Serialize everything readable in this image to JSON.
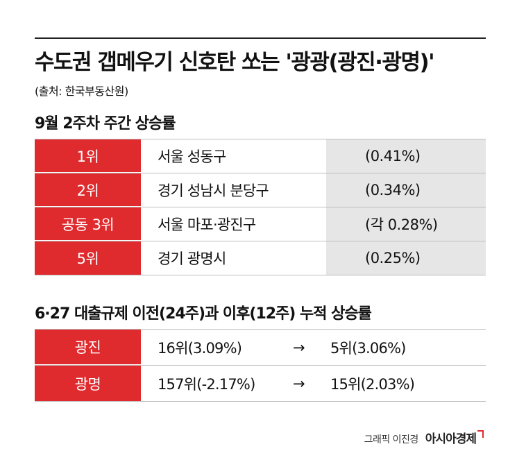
{
  "title": "수도권 갭메우기 신호탄 쏘는 '광광(광진·광명)'",
  "source": "(출처: 한국부동산원)",
  "weekly": {
    "heading": "9월 2주차 주간 상승률",
    "rows": [
      {
        "rank": "1위",
        "region": "서울 성동구",
        "rate": "(0.41%)"
      },
      {
        "rank": "2위",
        "region": "경기 성남시 분당구",
        "rate": "(0.34%)"
      },
      {
        "rank": "공동 3위",
        "region": "서울 마포·광진구",
        "rate": "(각 0.28%)"
      },
      {
        "rank": "5위",
        "region": "경기 광명시",
        "rate": "(0.25%)"
      }
    ]
  },
  "cumulative": {
    "heading": "6·27 대출규제 이전(24주)과 이후(12주) 누적 상승률",
    "rows": [
      {
        "region": "광진",
        "before": "16위(3.09%)",
        "arrow": "→",
        "after": "5위(3.06%)"
      },
      {
        "region": "광명",
        "before": "157위(-2.17%)",
        "arrow": "→",
        "after": "15위(2.03%)"
      }
    ]
  },
  "credit": {
    "byline": "그래픽 이진경",
    "brand": "아시아경제"
  },
  "colors": {
    "accent": "#df2a2e",
    "rate_bg": "#e6e6e6"
  }
}
